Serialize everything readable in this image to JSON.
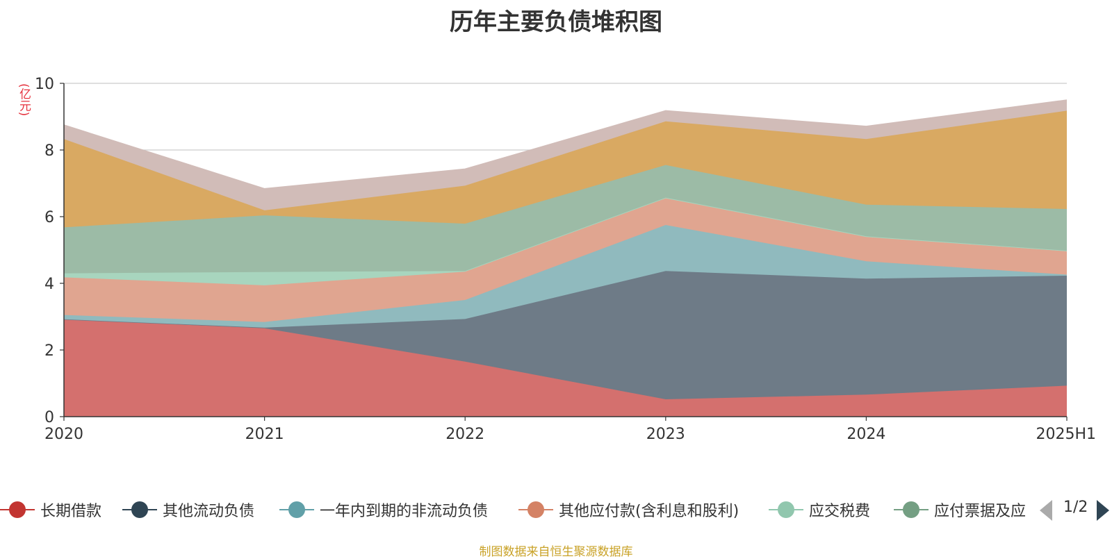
{
  "title": "历年主要负债堆积图",
  "unit": "(亿元)",
  "source": "制图数据来自恒生聚源数据库",
  "pager": {
    "text": "1/2"
  },
  "legend": [
    {
      "name": "长期借款",
      "color": "#c23531"
    },
    {
      "name": "其他流动负债",
      "color": "#2f4554"
    },
    {
      "name": "一年内到期的非流动负债",
      "color": "#61a0a8"
    },
    {
      "name": "其他应付款(含利息和股利)",
      "color": "#d48265"
    },
    {
      "name": "应交税费",
      "color": "#91c7ae"
    },
    {
      "name": "应付票据及应",
      "color": "#749f83"
    }
  ],
  "chart_data": {
    "type": "area",
    "stacked": true,
    "title": "历年主要负债堆积图",
    "ylabel": "(亿元)",
    "x": [
      "2020",
      "2021",
      "2022",
      "2023",
      "2024",
      "2025H1"
    ],
    "ylim": [
      0,
      10
    ],
    "yticks": [
      "0",
      "2",
      "4",
      "6",
      "8",
      "10"
    ],
    "grid": true,
    "legend_position": "bottom",
    "series": [
      {
        "name": "长期借款",
        "color": "#d4706e",
        "values": [
          2.92,
          2.65,
          1.65,
          0.52,
          0.66,
          0.93
        ]
      },
      {
        "name": "其他流动负债",
        "color": "#6e7b87",
        "values": [
          0.0,
          0.02,
          1.28,
          3.85,
          3.48,
          3.3
        ]
      },
      {
        "name": "一年内到期的非流动负债",
        "color": "#90babe",
        "values": [
          0.13,
          0.17,
          0.57,
          1.38,
          0.52,
          0.03
        ]
      },
      {
        "name": "其他应付款(含利息和股利)",
        "color": "#e0a590",
        "values": [
          1.13,
          1.1,
          0.85,
          0.8,
          0.73,
          0.7
        ]
      },
      {
        "name": "应交税费",
        "color": "#a8d5be",
        "values": [
          0.12,
          0.4,
          0.02,
          0.02,
          0.02,
          0.02
        ]
      },
      {
        "name": "应付票据及应付账款",
        "color": "#9cbba6",
        "values": [
          1.38,
          1.7,
          1.42,
          0.98,
          0.95,
          1.25
        ]
      },
      {
        "name": "",
        "color": "#d9a962",
        "values": [
          2.65,
          0.15,
          1.14,
          1.31,
          1.97,
          2.95
        ]
      },
      {
        "name": "",
        "color": "#d1bcb8",
        "values": [
          0.42,
          0.65,
          0.5,
          0.32,
          0.38,
          0.32
        ]
      }
    ]
  }
}
